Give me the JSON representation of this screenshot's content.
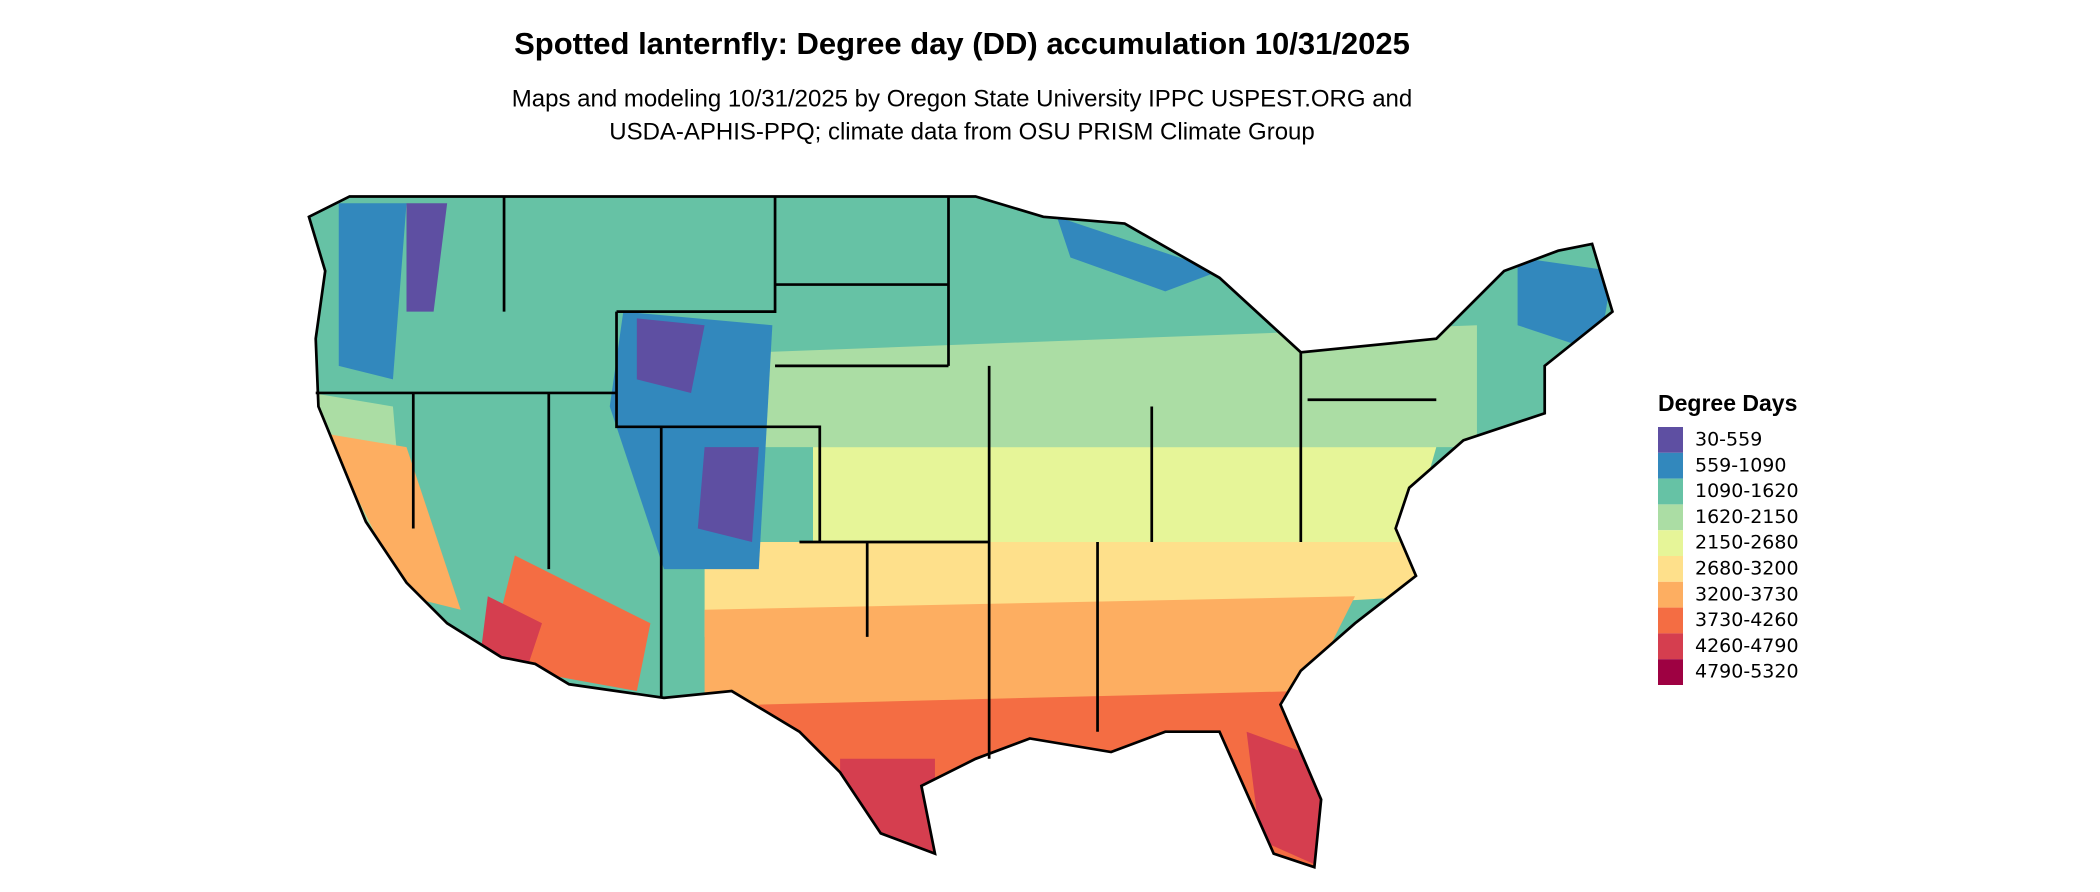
{
  "header": {
    "title": "Spotted lanternfly: Degree day (DD) accumulation 10/31/2025",
    "subtitle_lines": [
      "Maps and modeling 10/31/2025 by Oregon State University IPPC USPEST.ORG and",
      "USDA-APHIS-PPQ; climate data from OSU PRISM Climate Group"
    ]
  },
  "legend": {
    "title": "Degree Days",
    "items": [
      {
        "label": "30-559",
        "color": "#5e4fa2"
      },
      {
        "label": "559-1090",
        "color": "#3288bd"
      },
      {
        "label": "1090-1620",
        "color": "#66c2a5"
      },
      {
        "label": "1620-2150",
        "color": "#abdda4"
      },
      {
        "label": "2150-2680",
        "color": "#e6f598"
      },
      {
        "label": "2680-3200",
        "color": "#fee08b"
      },
      {
        "label": "3200-3730",
        "color": "#fdae61"
      },
      {
        "label": "3730-4260",
        "color": "#f46d43"
      },
      {
        "label": "4260-4790",
        "color": "#d53e4f"
      },
      {
        "label": "4790-5320",
        "color": "#9e0142"
      }
    ]
  }
}
